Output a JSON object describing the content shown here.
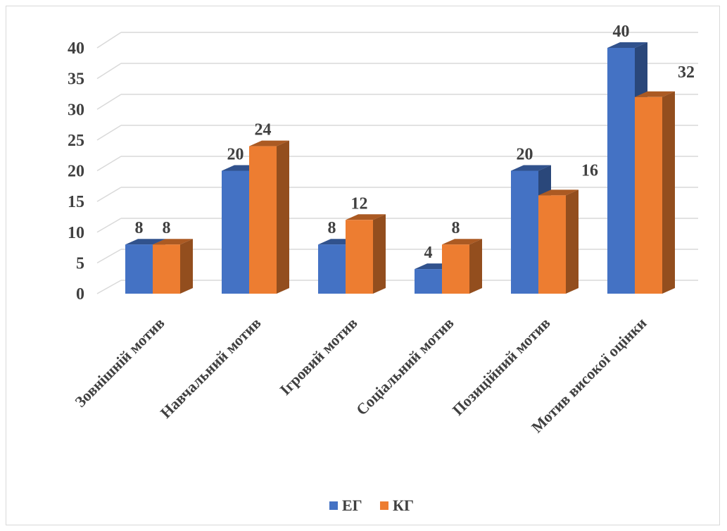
{
  "chart_data": {
    "type": "bar",
    "style": "3d-clustered-column",
    "categories": [
      "Зовнішній  мотив",
      "Навчальний  мотив",
      "Ігровий мотив",
      "Соціальний  мотив",
      "Позиційний  мотив",
      "Мотив високої оцінки"
    ],
    "series": [
      {
        "name": "ЕГ",
        "values": [
          8,
          20,
          8,
          4,
          20,
          40
        ],
        "color": "#4472c4"
      },
      {
        "name": "КГ",
        "values": [
          8,
          24,
          12,
          8,
          16,
          32
        ],
        "color": "#ed7d31"
      }
    ],
    "yticks": [
      "0",
      "5",
      "10",
      "15",
      "20",
      "25",
      "30",
      "35",
      "40"
    ],
    "ylim": [
      0,
      40
    ],
    "grid": true,
    "legend": "bottom",
    "data_labels": true
  }
}
